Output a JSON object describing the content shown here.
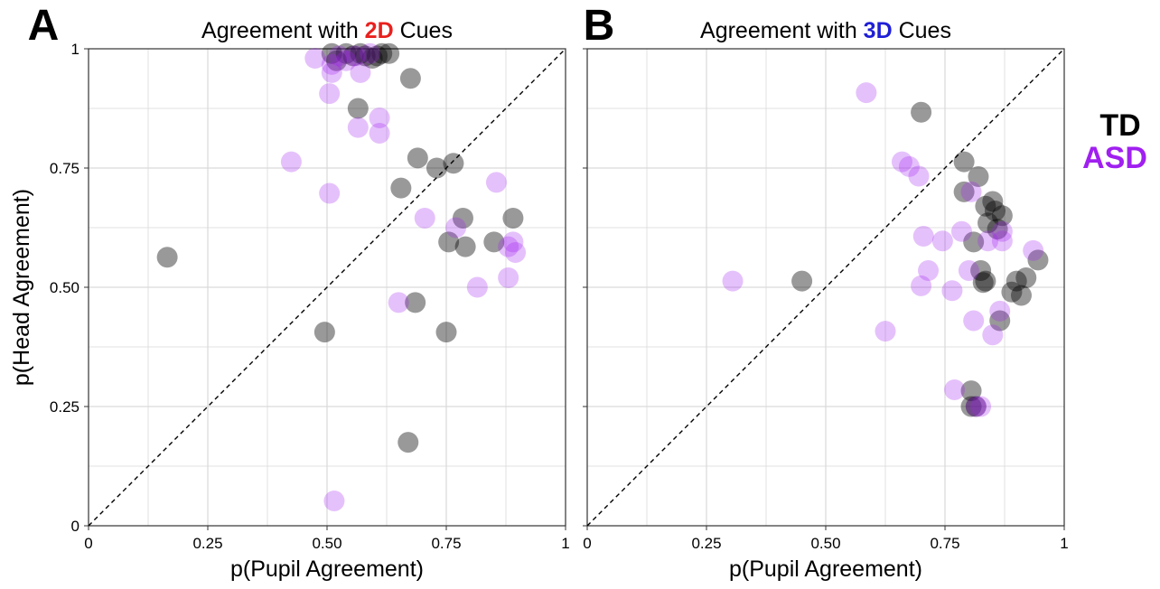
{
  "legend": {
    "entries": [
      {
        "label": "TD",
        "color": "#000000"
      },
      {
        "label": "ASD",
        "color": "#a020f0"
      }
    ]
  },
  "colors": {
    "TD": "#000000",
    "ASD": "#a020f0",
    "cue_2d": "#e8211e",
    "cue_3d": "#1f1fd6",
    "grid": "#d9d9d9",
    "diagonal": "#000000"
  },
  "chart_data": [
    {
      "type": "scatter",
      "panel_letter": "A",
      "title_prefix": "Agreement with ",
      "title_highlight": "2D",
      "title_suffix": " Cues",
      "xlabel": "p(Pupil Agreement)",
      "ylabel": "p(Head Agreement)",
      "xlim": [
        0,
        1
      ],
      "ylim": [
        0,
        1
      ],
      "x_ticks": [
        0,
        0.25,
        0.5,
        0.75,
        1
      ],
      "x_tick_labels": [
        "0",
        "0.25",
        "0.50",
        "0.75",
        "1"
      ],
      "y_ticks": [
        0,
        0.25,
        0.5,
        0.75,
        1
      ],
      "y_tick_labels": [
        "0",
        "0.25",
        "0.50",
        "0.75",
        "1"
      ],
      "grid": true,
      "reference_line": "y = x (dashed)",
      "series": [
        {
          "name": "TD",
          "points": [
            [
              0.165,
              0.563
            ],
            [
              0.495,
              0.406
            ],
            [
              0.51,
              0.99
            ],
            [
              0.52,
              0.975
            ],
            [
              0.54,
              0.99
            ],
            [
              0.555,
              0.985
            ],
            [
              0.57,
              0.99
            ],
            [
              0.58,
              0.985
            ],
            [
              0.595,
              0.98
            ],
            [
              0.605,
              0.985
            ],
            [
              0.615,
              0.99
            ],
            [
              0.63,
              0.99
            ],
            [
              0.655,
              0.708
            ],
            [
              0.67,
              0.175
            ],
            [
              0.675,
              0.938
            ],
            [
              0.685,
              0.468
            ],
            [
              0.69,
              0.771
            ],
            [
              0.73,
              0.75
            ],
            [
              0.75,
              0.406
            ],
            [
              0.755,
              0.595
            ],
            [
              0.765,
              0.76
            ],
            [
              0.785,
              0.645
            ],
            [
              0.79,
              0.585
            ],
            [
              0.85,
              0.595
            ],
            [
              0.89,
              0.645
            ],
            [
              0.565,
              0.875
            ]
          ]
        },
        {
          "name": "ASD",
          "points": [
            [
              0.425,
              0.763
            ],
            [
              0.475,
              0.98
            ],
            [
              0.505,
              0.697
            ],
            [
              0.505,
              0.906
            ],
            [
              0.51,
              0.95
            ],
            [
              0.51,
              0.967
            ],
            [
              0.515,
              0.052
            ],
            [
              0.525,
              0.985
            ],
            [
              0.54,
              0.975
            ],
            [
              0.56,
              0.985
            ],
            [
              0.565,
              0.835
            ],
            [
              0.57,
              0.95
            ],
            [
              0.59,
              0.99
            ],
            [
              0.61,
              0.823
            ],
            [
              0.61,
              0.855
            ],
            [
              0.65,
              0.468
            ],
            [
              0.705,
              0.645
            ],
            [
              0.77,
              0.625
            ],
            [
              0.815,
              0.5
            ],
            [
              0.855,
              0.72
            ],
            [
              0.88,
              0.52
            ],
            [
              0.88,
              0.585
            ],
            [
              0.89,
              0.595
            ],
            [
              0.895,
              0.573
            ]
          ]
        }
      ]
    },
    {
      "type": "scatter",
      "panel_letter": "B",
      "title_prefix": "Agreement with ",
      "title_highlight": "3D",
      "title_suffix": " Cues",
      "xlabel": "p(Pupil Agreement)",
      "ylabel": "",
      "xlim": [
        0,
        1
      ],
      "ylim": [
        0,
        1
      ],
      "x_ticks": [
        0,
        0.25,
        0.5,
        0.75,
        1
      ],
      "x_tick_labels": [
        "0",
        "0.25",
        "0.50",
        "0.75",
        "1"
      ],
      "y_ticks": [
        0,
        0.25,
        0.5,
        0.75,
        1
      ],
      "y_tick_labels": [],
      "grid": true,
      "reference_line": "y = x (dashed)",
      "series": [
        {
          "name": "TD",
          "points": [
            [
              0.45,
              0.513
            ],
            [
              0.7,
              0.867
            ],
            [
              0.79,
              0.763
            ],
            [
              0.79,
              0.7
            ],
            [
              0.805,
              0.283
            ],
            [
              0.805,
              0.25
            ],
            [
              0.81,
              0.595
            ],
            [
              0.82,
              0.732
            ],
            [
              0.825,
              0.535
            ],
            [
              0.83,
              0.51
            ],
            [
              0.835,
              0.513
            ],
            [
              0.835,
              0.67
            ],
            [
              0.84,
              0.635
            ],
            [
              0.85,
              0.68
            ],
            [
              0.855,
              0.66
            ],
            [
              0.86,
              0.622
            ],
            [
              0.865,
              0.43
            ],
            [
              0.87,
              0.65
            ],
            [
              0.89,
              0.49
            ],
            [
              0.9,
              0.513
            ],
            [
              0.91,
              0.483
            ],
            [
              0.92,
              0.52
            ],
            [
              0.945,
              0.557
            ],
            [
              0.815,
              0.25
            ]
          ]
        },
        {
          "name": "ASD",
          "points": [
            [
              0.305,
              0.513
            ],
            [
              0.585,
              0.908
            ],
            [
              0.625,
              0.408
            ],
            [
              0.66,
              0.763
            ],
            [
              0.675,
              0.753
            ],
            [
              0.695,
              0.733
            ],
            [
              0.7,
              0.503
            ],
            [
              0.705,
              0.607
            ],
            [
              0.715,
              0.535
            ],
            [
              0.745,
              0.597
            ],
            [
              0.765,
              0.493
            ],
            [
              0.77,
              0.285
            ],
            [
              0.785,
              0.617
            ],
            [
              0.8,
              0.535
            ],
            [
              0.805,
              0.7
            ],
            [
              0.81,
              0.43
            ],
            [
              0.815,
              0.25
            ],
            [
              0.825,
              0.25
            ],
            [
              0.84,
              0.597
            ],
            [
              0.85,
              0.4
            ],
            [
              0.865,
              0.45
            ],
            [
              0.87,
              0.597
            ],
            [
              0.87,
              0.617
            ],
            [
              0.935,
              0.577
            ]
          ]
        }
      ]
    }
  ]
}
